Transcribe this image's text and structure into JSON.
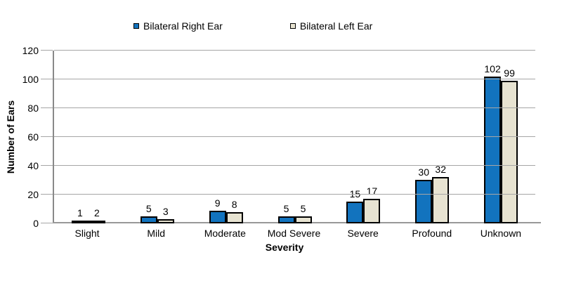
{
  "chart_data": {
    "type": "bar",
    "title": "",
    "categories": [
      "Slight",
      "Mild",
      "Moderate",
      "Mod Severe",
      "Severe",
      "Profound",
      "Unknown"
    ],
    "series": [
      {
        "name": "Bilateral Right Ear",
        "color": "#1273BE",
        "values": [
          1,
          5,
          9,
          5,
          15,
          30,
          102
        ]
      },
      {
        "name": "Bilateral Left Ear",
        "color": "#E7E3D1",
        "values": [
          2,
          3,
          8,
          5,
          17,
          32,
          99
        ]
      }
    ],
    "xlabel": "Severity",
    "ylabel": "Number of Ears",
    "ylim": [
      0,
      120
    ],
    "ytick_step": 20,
    "grid": true,
    "legend_position": "top",
    "bar_border_color": "#000000",
    "axis_color": "#898989",
    "gridline_color": "#A6A6A6"
  }
}
